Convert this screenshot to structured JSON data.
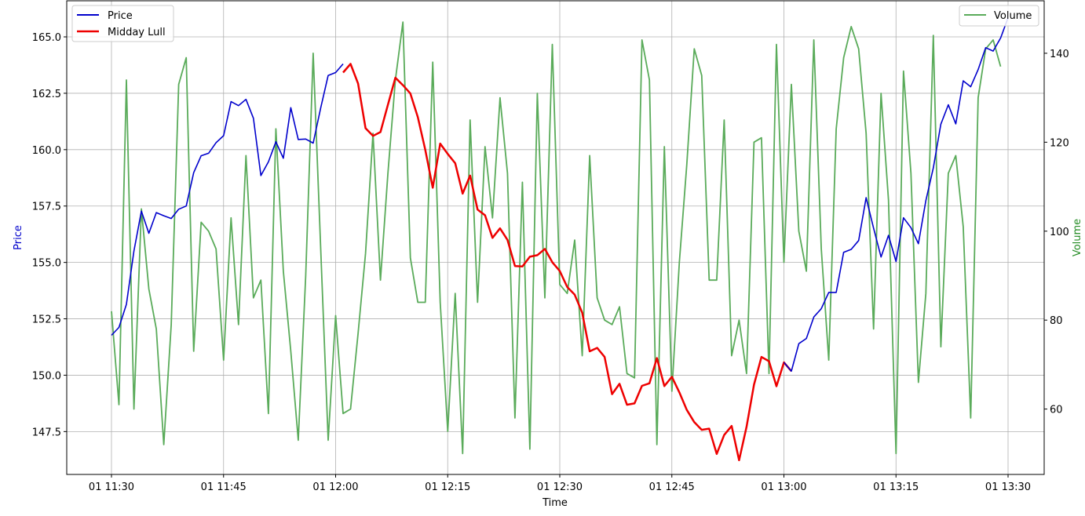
{
  "chart_data": {
    "type": "line",
    "xlabel": "Time",
    "ylabel_left": "Price",
    "ylabel_right": "Volume",
    "x_ticks": [
      "01 11:30",
      "01 11:45",
      "01 12:00",
      "01 12:15",
      "01 12:30",
      "01 12:45",
      "01 13:00",
      "01 13:15",
      "01 13:30"
    ],
    "y_left_ticks": [
      "147.5",
      "150.0",
      "152.5",
      "155.0",
      "157.5",
      "160.0",
      "162.5",
      "165.0"
    ],
    "y_right_ticks": [
      "60",
      "80",
      "100",
      "120",
      "140"
    ],
    "ylim_left": [
      145.6,
      166.6
    ],
    "ylim_right": [
      45.3,
      151.8
    ],
    "grid": true,
    "legend_left_position": "upper-left",
    "legend_right_position": "upper-right",
    "x_start": "2024-01-01 11:30",
    "x_step_minutes": 1,
    "series": [
      {
        "name": "Price",
        "axis": "left",
        "color": "#0000cc",
        "start_index": 0,
        "values": [
          151.77,
          152.12,
          153.14,
          155.51,
          157.27,
          156.29,
          157.21,
          157.07,
          156.95,
          157.36,
          157.5,
          158.98,
          159.73,
          159.84,
          160.31,
          160.62,
          162.13,
          161.95,
          162.23,
          161.39,
          158.85,
          159.46,
          160.35,
          159.62,
          161.86,
          160.45,
          160.47,
          160.29,
          161.85,
          163.29,
          163.42,
          163.8
        ]
      },
      {
        "name": "Midday Lull",
        "axis": "left",
        "color": "#ee0000",
        "start_index": 31,
        "values": [
          163.42,
          163.8,
          162.93,
          160.95,
          160.61,
          160.78,
          161.99,
          163.19,
          162.86,
          162.49,
          161.44,
          159.99,
          158.31,
          160.27,
          159.81,
          159.4,
          158.05,
          158.85,
          157.34,
          157.09,
          156.09,
          156.51,
          156.0,
          154.84,
          154.82,
          155.25,
          155.32,
          155.6,
          155.01,
          154.62,
          153.91,
          153.57,
          152.77,
          151.06,
          151.21,
          150.81,
          149.16,
          149.62,
          148.69,
          148.75,
          149.53,
          149.64,
          150.76,
          149.52,
          149.93,
          149.24,
          148.46,
          147.92,
          147.58,
          147.63,
          146.51,
          147.35,
          147.75,
          146.23,
          147.71,
          149.58,
          150.81,
          150.62,
          149.51,
          150.57,
          150.18
        ]
      },
      {
        "name": "Price",
        "axis": "left",
        "color": "#0000cc",
        "start_index": 90,
        "values": [
          150.57,
          150.18,
          151.4,
          151.63,
          152.58,
          152.95,
          153.67,
          153.67,
          155.45,
          155.58,
          155.97,
          157.87,
          156.52,
          155.24,
          156.2,
          155.04,
          156.98,
          156.54,
          155.83,
          157.74,
          159.19,
          161.13,
          161.99,
          161.14,
          163.05,
          162.79,
          163.55,
          164.52,
          164.37,
          164.95,
          165.85
        ]
      },
      {
        "name": "Volume",
        "axis": "right",
        "color": "#5aab5a",
        "start_index": 0,
        "values": [
          82,
          61,
          134,
          60,
          105,
          87,
          78,
          52,
          79,
          133,
          139,
          73,
          102,
          100,
          96,
          71,
          103,
          79,
          117,
          85,
          89,
          59,
          123,
          91,
          73,
          53,
          90,
          140,
          96,
          53,
          81,
          59,
          60,
          77,
          95,
          122,
          89,
          113,
          134,
          147,
          94,
          84,
          84,
          138,
          84,
          55,
          86,
          50,
          125,
          84,
          119,
          103,
          130,
          113,
          58,
          111,
          51,
          131,
          85,
          142,
          88,
          86,
          98,
          72,
          117,
          85,
          80,
          79,
          83,
          68,
          67,
          143,
          134,
          52,
          119,
          64,
          93,
          115,
          141,
          135,
          89,
          89,
          125,
          72,
          80,
          68,
          120,
          121,
          68,
          142,
          93,
          133,
          100,
          91,
          143,
          96,
          71,
          123,
          139,
          146,
          141,
          122,
          78,
          131,
          107,
          50,
          136,
          113,
          66,
          86,
          144,
          74,
          113,
          117,
          101,
          58,
          130,
          141,
          143,
          137
        ]
      }
    ],
    "legends": {
      "left": [
        "Price",
        "Midday Lull"
      ],
      "right": [
        "Volume"
      ]
    }
  }
}
